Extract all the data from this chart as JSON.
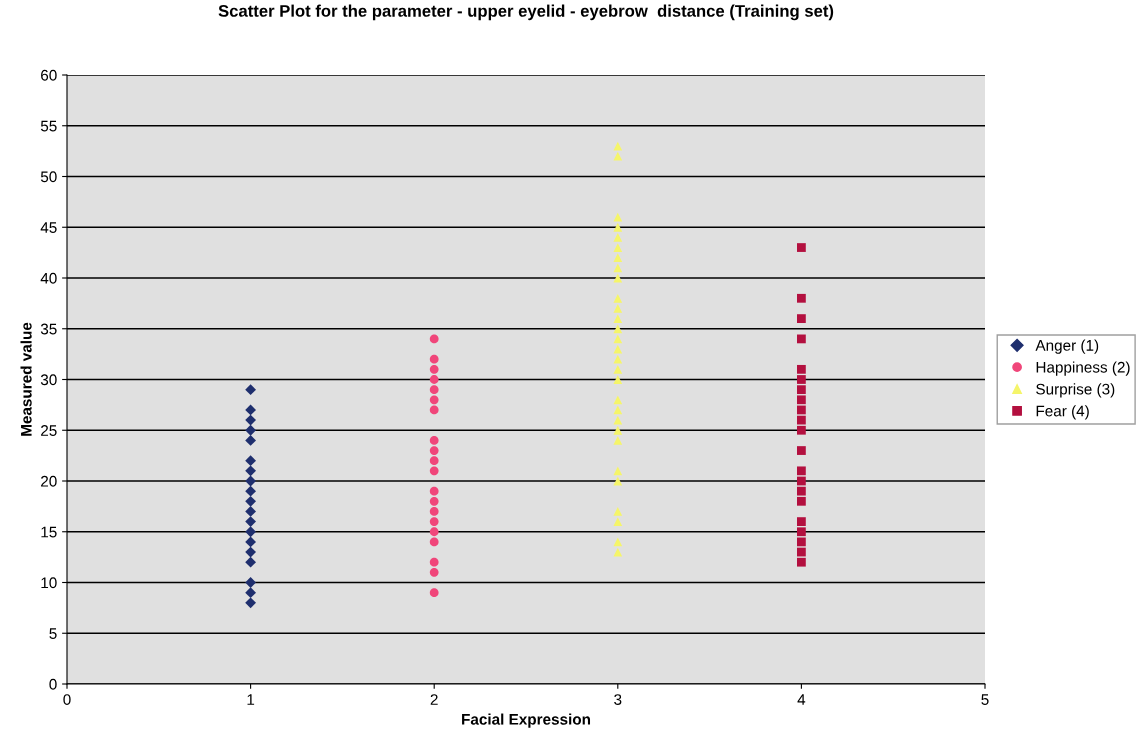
{
  "chart_data": {
    "type": "scatter",
    "title": "Scatter Plot for the parameter - upper eyelid - eyebrow  distance (Training set)",
    "xlabel": "Facial Expression",
    "ylabel": "Measured value",
    "xlim": [
      0,
      5
    ],
    "xticks": [
      0,
      1,
      2,
      3,
      4,
      5
    ],
    "ylim": [
      0,
      60
    ],
    "yticks": [
      0,
      5,
      10,
      15,
      20,
      25,
      30,
      35,
      40,
      45,
      50,
      55,
      60
    ],
    "grid": "y",
    "legend": "right",
    "series": [
      {
        "name": "Anger (1)",
        "color": "#1f2f6e",
        "marker": "diamond",
        "x": [
          1,
          1,
          1,
          1,
          1,
          1,
          1,
          1,
          1,
          1,
          1,
          1,
          1,
          1,
          1,
          1,
          1,
          1,
          1
        ],
        "values": [
          29,
          27,
          26,
          25,
          24,
          22,
          21,
          20,
          19,
          18,
          17,
          16,
          15,
          14,
          13,
          12,
          10,
          9,
          8
        ]
      },
      {
        "name": "Happiness (2)",
        "color": "#f0467a",
        "marker": "circle",
        "x": [
          2,
          2,
          2,
          2,
          2,
          2,
          2,
          2,
          2,
          2,
          2,
          2,
          2,
          2,
          2,
          2,
          2,
          2,
          2,
          2
        ],
        "values": [
          34,
          32,
          31,
          30,
          29,
          28,
          27,
          24,
          23,
          22,
          21,
          19,
          18,
          17,
          16,
          15,
          14,
          12,
          11,
          9
        ]
      },
      {
        "name": "Surprise (3)",
        "color": "#f5f56a",
        "marker": "triangle",
        "x": [
          3,
          3,
          3,
          3,
          3,
          3,
          3,
          3,
          3,
          3,
          3,
          3,
          3,
          3,
          3,
          3,
          3,
          3,
          3,
          3,
          3,
          3,
          3,
          3,
          3,
          3,
          3,
          3,
          3
        ],
        "values": [
          53,
          52,
          46,
          45,
          44,
          43,
          42,
          41,
          40,
          38,
          37,
          36,
          35,
          34,
          33,
          32,
          31,
          30,
          28,
          27,
          26,
          25,
          24,
          21,
          20,
          17,
          16,
          14,
          13
        ]
      },
      {
        "name": "Fear (4)",
        "color": "#b3103f",
        "marker": "square",
        "x": [
          4,
          4,
          4,
          4,
          4,
          4,
          4,
          4,
          4,
          4,
          4,
          4,
          4,
          4,
          4,
          4,
          4,
          4,
          4,
          4,
          4
        ],
        "values": [
          43,
          38,
          36,
          34,
          31,
          30,
          29,
          28,
          27,
          26,
          25,
          23,
          21,
          20,
          19,
          18,
          16,
          15,
          14,
          13,
          12
        ]
      }
    ]
  }
}
